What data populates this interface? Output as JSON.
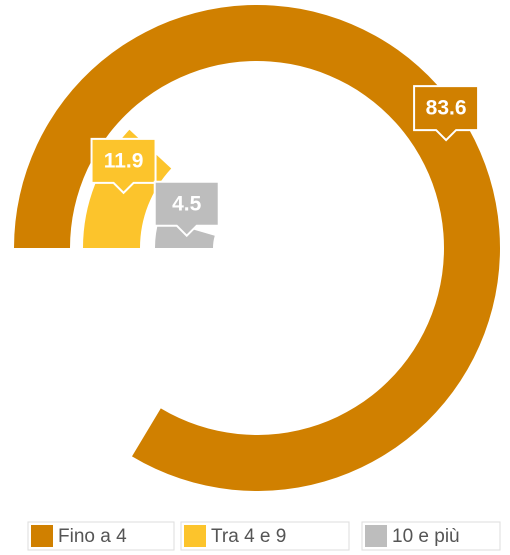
{
  "chart_data": {
    "type": "radial_bar",
    "categories": [
      "Fino a 4",
      "Tra 4 e 9",
      "10 e più"
    ],
    "values": [
      83.6,
      11.9,
      4.5
    ],
    "colors": [
      "#d08000",
      "#fcc42c",
      "#bdbdbd"
    ],
    "ylim": [
      0,
      100
    ],
    "legend": "bottom"
  }
}
